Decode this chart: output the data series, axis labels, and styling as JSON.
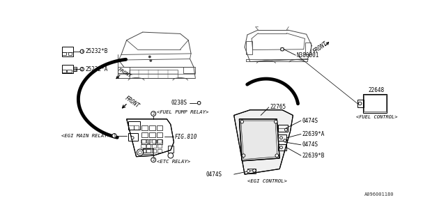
{
  "bg_color": "#ffffff",
  "line_color": "#000000",
  "gray_color": "#888888",
  "diagram_code": "A096001180",
  "font_size": 5.5,
  "labels": {
    "egi_main_relay": "<EGI MAIN RELAY>",
    "fuel_pump_relay": "<FUEL PUMP RELAY>",
    "etc_relay": "<ETC RELAY>",
    "egi_control": "<EGI CONTROL>",
    "fuel_control": "<FUEL CONTROL>",
    "front_lower": "FRONT",
    "front_upper": "FRONT",
    "fig810": "FIG.810",
    "p25232b": "25232*B",
    "p25232a": "25232*A",
    "p22648": "22648",
    "p22765": "22765",
    "p22639a": "22639*A",
    "p22639b": "22639*B",
    "p0474s": "0474S",
    "p0238s": "0238S",
    "pN380001": "N380001"
  }
}
